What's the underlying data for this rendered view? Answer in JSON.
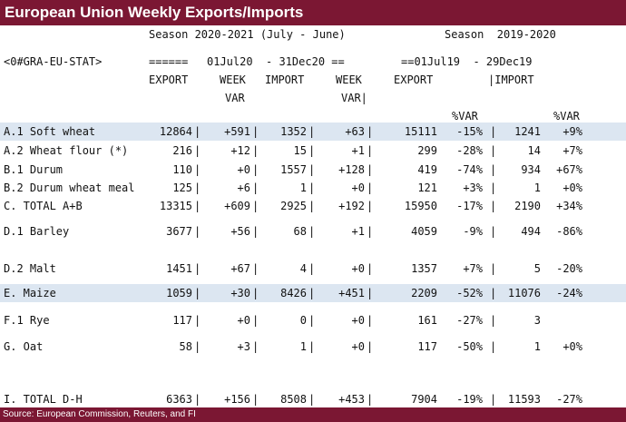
{
  "title": "European Union Weekly Exports/Imports",
  "footer": "Source: European Commission, Reuters, and FI",
  "header": {
    "season_current": "Season 2020-2021 (July - June)",
    "season_prior": "Season  2019-2020",
    "ric": "<0#GRA-EU-STAT>",
    "rule_left": "======",
    "period_current": "01Jul20  - 31Dec20 ==",
    "period_prior": "==01Jul19  - 29Dec19"
  },
  "columns": {
    "export": "EXPORT",
    "week_var": "WEEK",
    "var": "VAR",
    "import": "IMPORT",
    "week_var_import": "WEEK",
    "var_import": "VAR|",
    "prior_export": "EXPORT",
    "prior_import": "|IMPORT",
    "pct_var": "%VAR",
    "pct_var_import": "%VAR"
  },
  "rows": [
    {
      "label": "A.1 Soft wheat",
      "export": "12864",
      "ewv": "+591",
      "import": "1352",
      "iwv": "+63",
      "pexp": "15111",
      "pev": "-15%",
      "pimp": "1241",
      "piv": "+9%",
      "highlight": true
    },
    {
      "label": "A.2 Wheat flour (*)",
      "export": "216",
      "ewv": "+12",
      "import": "15",
      "iwv": "+1",
      "pexp": "299",
      "pev": "-28%",
      "pimp": "14",
      "piv": "+7%"
    },
    {
      "label": "B.1 Durum",
      "export": "110",
      "ewv": "+0",
      "import": "1557",
      "iwv": "+128",
      "pexp": "419",
      "pev": "-74%",
      "pimp": "934",
      "piv": "+67%"
    },
    {
      "label": "B.2 Durum wheat meal",
      "export": "125",
      "ewv": "+6",
      "import": "1",
      "iwv": "+0",
      "pexp": "121",
      "pev": "+3%",
      "pimp": "1",
      "piv": "+0%"
    },
    {
      "label": "C. TOTAL A+B",
      "export": "13315",
      "ewv": "+609",
      "import": "2925",
      "iwv": "+192",
      "pexp": "15950",
      "pev": "-17%",
      "pimp": "2190",
      "piv": "+34%"
    },
    {
      "label": "D.1 Barley",
      "export": "3677",
      "ewv": "+56",
      "import": "68",
      "iwv": "+1",
      "pexp": "4059",
      "pev": "-9%",
      "pimp": "494",
      "piv": "-86%"
    },
    {
      "label": "D.2 Malt",
      "export": "1451",
      "ewv": "+67",
      "import": "4",
      "iwv": "+0",
      "pexp": "1357",
      "pev": "+7%",
      "pimp": "5",
      "piv": "-20%"
    },
    {
      "label": "E. Maize",
      "export": "1059",
      "ewv": "+30",
      "import": "8426",
      "iwv": "+451",
      "pexp": "2209",
      "pev": "-52%",
      "pimp": "11076",
      "piv": "-24%",
      "highlight": true
    },
    {
      "label": "F.1 Rye",
      "export": "117",
      "ewv": "+0",
      "import": "0",
      "iwv": "+0",
      "pexp": "161",
      "pev": "-27%",
      "pimp": "3",
      "piv": ""
    },
    {
      "label": "G. Oat",
      "export": "58",
      "ewv": "+3",
      "import": "1",
      "iwv": "+0",
      "pexp": "117",
      "pev": "-50%",
      "pimp": "1",
      "piv": "+0%"
    },
    {
      "label": "I. TOTAL D-H",
      "export": "6363",
      "ewv": "+156",
      "import": "8508",
      "iwv": "+453",
      "pexp": "7904",
      "pev": "-19%",
      "pimp": "11593",
      "piv": "-27%"
    }
  ],
  "separator": "|"
}
